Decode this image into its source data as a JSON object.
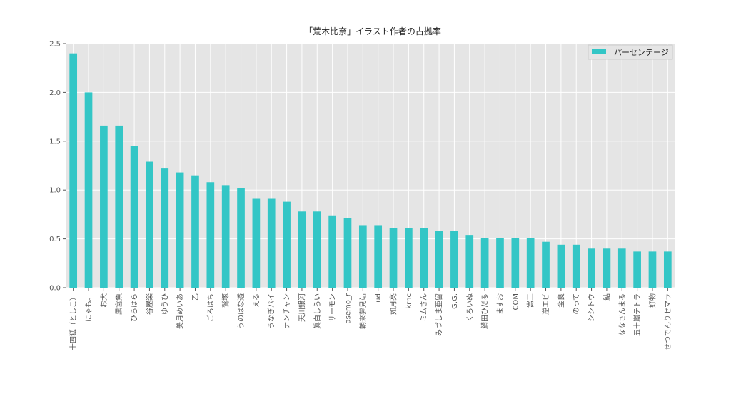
{
  "chart_data": {
    "type": "bar",
    "title": "「荒木比奈」イラスト作者の占拠率",
    "xlabel": "",
    "ylabel": "",
    "ylim": [
      0,
      2.5
    ],
    "yticks": [
      "0.0",
      "0.5",
      "1.0",
      "1.5",
      "2.0",
      "2.5"
    ],
    "grid": true,
    "legend_position": "top-right",
    "bar_color": "#33c6c6",
    "background_color": "#e5e5e5",
    "categories": [
      "十四狐（としこ）",
      "にゃも。",
      "お犬",
      "黒宮魚",
      "ひらはら",
      "谷屋楽",
      "ゆうひ",
      "美月めいあ",
      "乙",
      "ごろはち",
      "鷲塚",
      "うのはな透",
      "える",
      "うなぎパイ",
      "ナンチャン",
      "天川銀河",
      "眞白しらい",
      "サーモン",
      "asemo_r",
      "朝来夢見站",
      "ud",
      "如月亮",
      "krnc",
      "ミムさん",
      "みづしま亜留",
      "G.G.",
      "くろいぬ",
      "鯖田ひだる",
      "ますお",
      "COM",
      "嵩三",
      "逆エビ",
      "金良",
      "のって",
      "シシトウ",
      "鮎",
      "ななさんまる",
      "五十嵐テトラ",
      "好物",
      "せつでんりセマラ"
    ],
    "series": [
      {
        "name": "パーセンテージ",
        "values": [
          2.4,
          2.0,
          1.66,
          1.66,
          1.45,
          1.29,
          1.22,
          1.18,
          1.15,
          1.08,
          1.05,
          1.02,
          0.91,
          0.91,
          0.88,
          0.78,
          0.78,
          0.74,
          0.71,
          0.64,
          0.64,
          0.61,
          0.61,
          0.61,
          0.58,
          0.58,
          0.54,
          0.51,
          0.51,
          0.51,
          0.51,
          0.47,
          0.44,
          0.44,
          0.4,
          0.4,
          0.4,
          0.37,
          0.37,
          0.37
        ]
      }
    ]
  }
}
